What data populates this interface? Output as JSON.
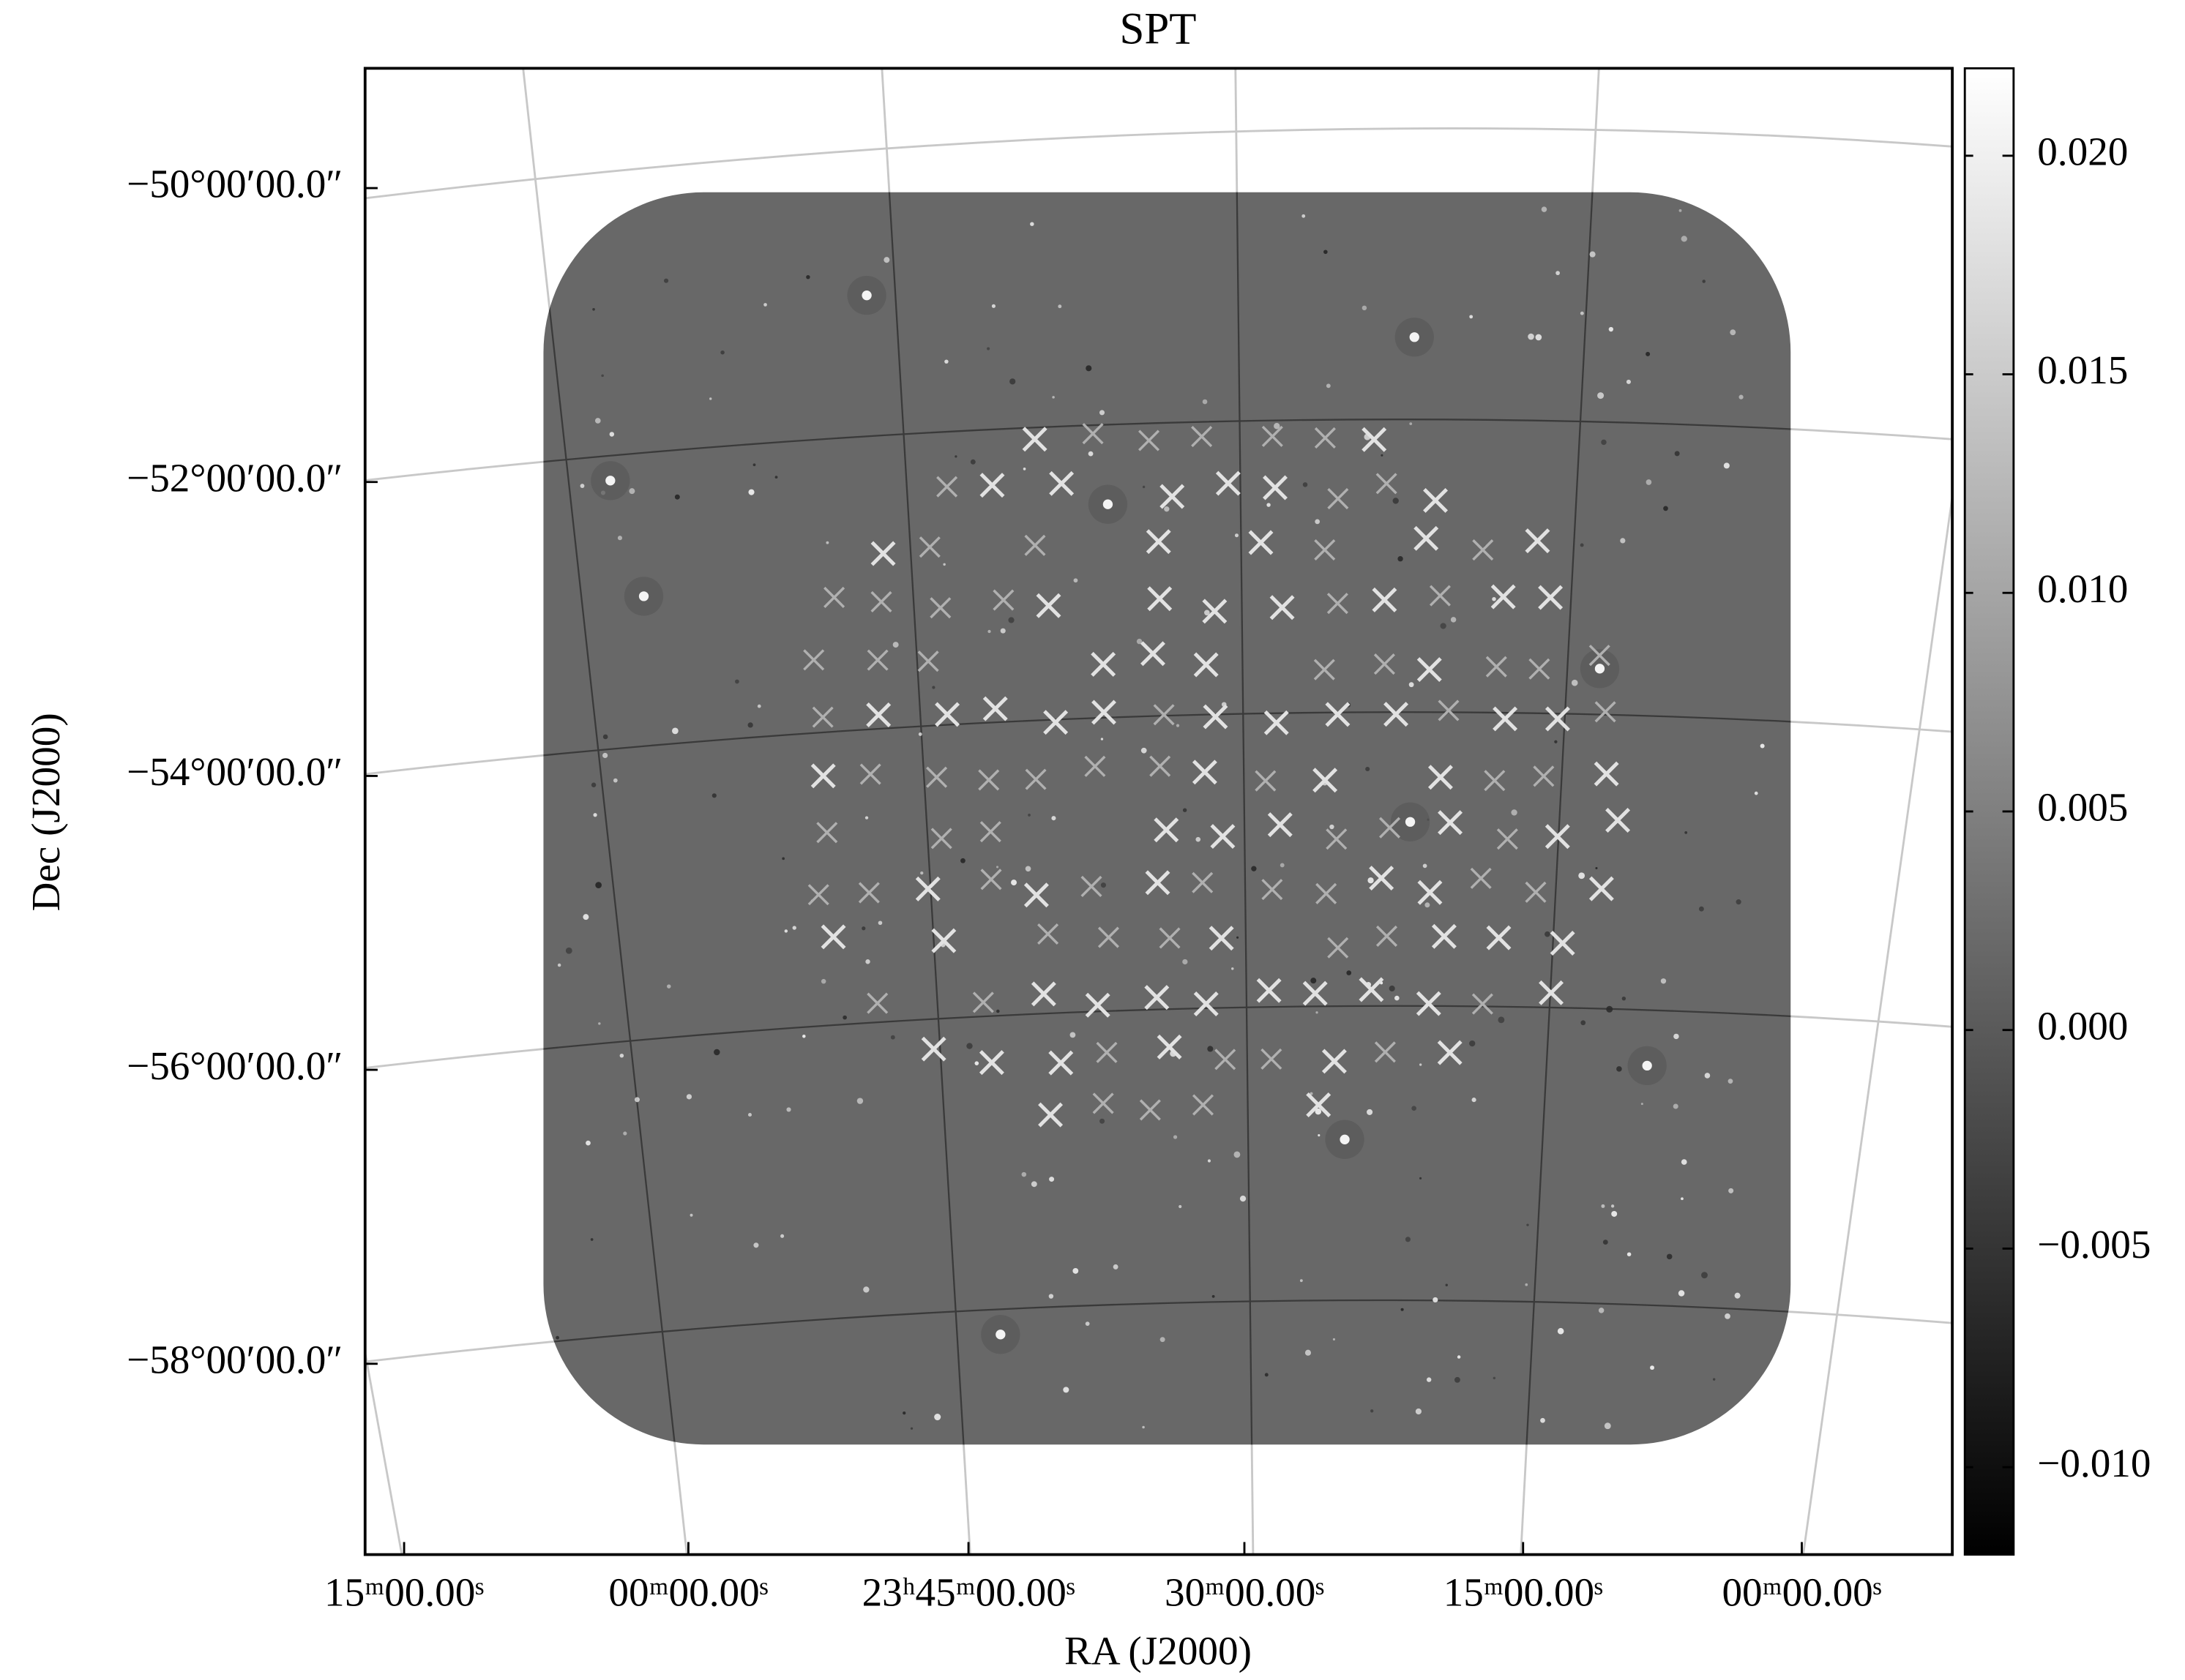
{
  "chart_data": {
    "type": "image",
    "title": "SPT",
    "xlabel": "RA (J2000)",
    "ylabel": "Dec (J2000)",
    "xtick_labels": [
      "15ᵐ00.00ˢ",
      "00ᵐ00.00ˢ",
      "23ʰ45ᵐ00.00ˢ",
      "30ᵐ00.00ˢ",
      "15ᵐ00.00ˢ",
      "00ᵐ00.00ˢ"
    ],
    "ytick_labels": [
      "−50°00′00.0″",
      "−52°00′00.0″",
      "−54°00′00.0″",
      "−56°00′00.0″",
      "−58°00′00.0″"
    ],
    "colorbar": {
      "cmap": "gray",
      "lim": [
        -0.012,
        0.022
      ],
      "ticks": [
        {
          "value": -0.01,
          "label": "−0.010"
        },
        {
          "value": -0.005,
          "label": "−0.005"
        },
        {
          "value": 0,
          "label": "0.000"
        },
        {
          "value": 0.005,
          "label": "0.005"
        },
        {
          "value": 0.01,
          "label": "0.010"
        },
        {
          "value": 0.015,
          "label": "0.015"
        },
        {
          "value": 0.02,
          "label": "0.020"
        }
      ]
    }
  }
}
